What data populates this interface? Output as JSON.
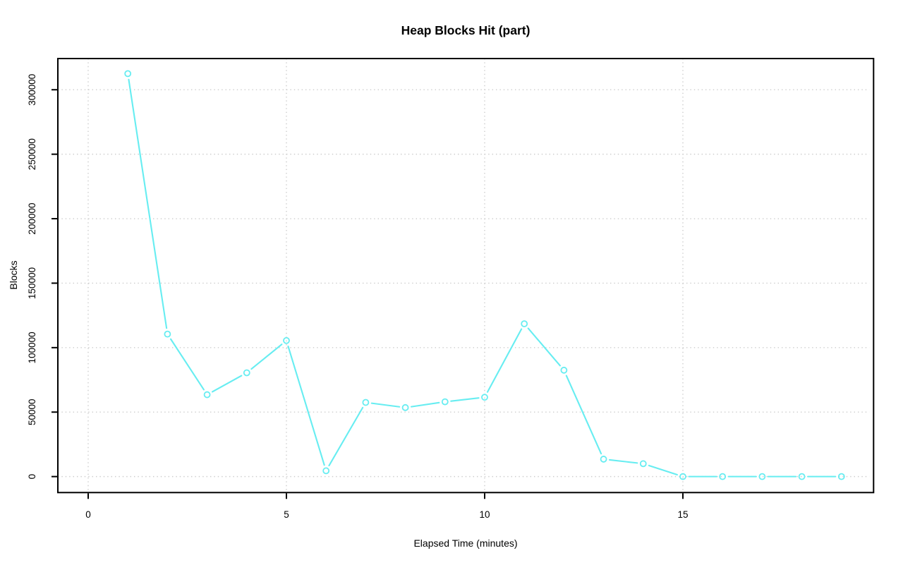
{
  "chart_data": {
    "type": "line",
    "title": "Heap Blocks Hit (part)",
    "xlabel": "Elapsed Time (minutes)",
    "ylabel": "Blocks",
    "x": [
      1,
      2,
      3,
      4,
      5,
      6,
      7,
      8,
      9,
      10,
      11,
      12,
      13,
      14,
      15,
      16,
      17,
      18,
      19
    ],
    "values": [
      312500,
      110500,
      63500,
      80500,
      105500,
      4500,
      57500,
      53500,
      58000,
      61500,
      118500,
      82500,
      13500,
      10000,
      0,
      0,
      0,
      0,
      0
    ],
    "x_ticks": [
      0,
      5,
      10,
      15
    ],
    "y_ticks": [
      0,
      50000,
      100000,
      150000,
      200000,
      250000,
      300000
    ],
    "xlim": [
      -0.765,
      19.81
    ],
    "ylim": [
      -12400,
      324200
    ],
    "grid": "dotted-at-ticks",
    "legend": "none",
    "marker": "open-circle",
    "series_color": "#67edf1",
    "grid_color": "#cccccc",
    "axis_color": "#000000",
    "background_color": "#ffffff"
  }
}
